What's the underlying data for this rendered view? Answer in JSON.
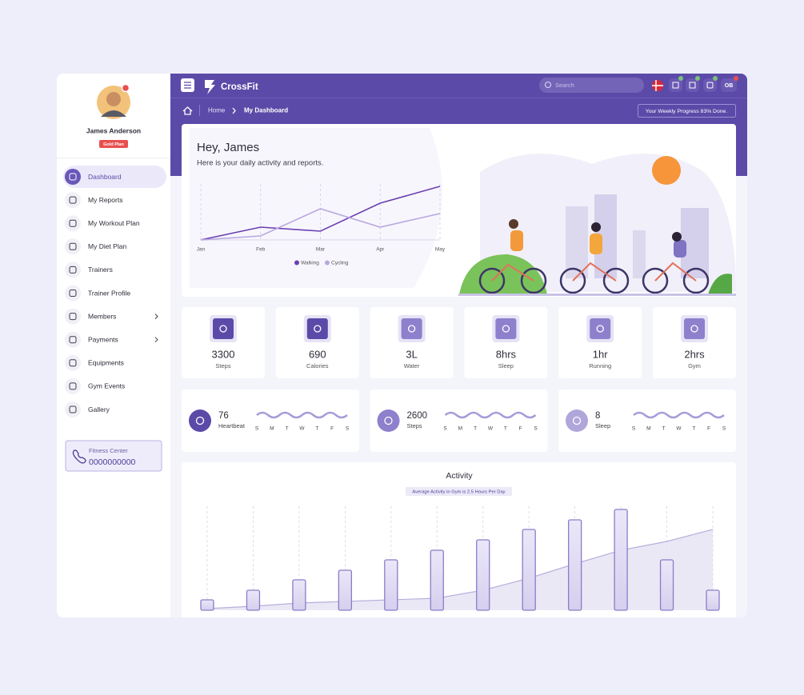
{
  "sidebar": {
    "user_name": "James Anderson",
    "plan": "Gold Plan",
    "menu": [
      "Dashboard",
      "My Reports",
      "My Workout Plan",
      "My Diet Plan",
      "Trainers",
      "Trainer Profile",
      "Members",
      "Payments",
      "Equipments",
      "Gym Events",
      "Gallery"
    ],
    "contact_label": "Fitness Center",
    "contact_phone": "0000000000"
  },
  "header": {
    "brand": "CrossFit",
    "search_placeholder": "Search",
    "user_initials": "OB"
  },
  "breadcrumb": {
    "items": [
      "Home",
      "My Dashboard"
    ],
    "progress": "Your Weekly Progress 83% Done."
  },
  "welcome": {
    "title": "Hey, James",
    "subtitle": "Here is your daily activity and reports."
  },
  "chart_data": [
    {
      "type": "line",
      "categories": [
        "Jan",
        "Feb",
        "Mar",
        "Apr",
        "May"
      ],
      "series": [
        {
          "name": "Walking",
          "color": "#6b3fb0",
          "values": [
            0,
            16,
            11,
            46,
            67
          ]
        },
        {
          "name": "Cycling",
          "color": "#b9a8e0",
          "values": [
            0,
            5,
            39,
            16,
            33
          ]
        }
      ],
      "ylim": [
        0,
        70
      ],
      "grid": true
    },
    {
      "type": "bar",
      "title": "Activity",
      "subtitle": "Average Activity in Gym is 2.5 Hours Per Day",
      "series": [
        {
          "type": "bar",
          "color": "#8a7cc8",
          "values": [
            13,
            25,
            38,
            50,
            63,
            75,
            88,
            101,
            113,
            126,
            63,
            25
          ]
        },
        {
          "type": "area",
          "color": "#b9afdc",
          "values": [
            2,
            5,
            9,
            11,
            13,
            15,
            25,
            40,
            58,
            75,
            86,
            101
          ]
        }
      ],
      "ylim": [
        0,
        130
      ],
      "grid": true
    }
  ],
  "stats": [
    {
      "value": 3300,
      "label": "Steps"
    },
    {
      "value": 690,
      "label": "Calories"
    },
    {
      "value": "3L",
      "label": "Water"
    },
    {
      "value": "8hrs",
      "label": "Sleep"
    },
    {
      "value": "1hr",
      "label": "Running"
    },
    {
      "value": "2hrs",
      "label": "Gym"
    }
  ],
  "mini_cards": [
    {
      "value": 76,
      "label": "Heartbeat"
    },
    {
      "value": 2600,
      "label": "Steps"
    },
    {
      "value": 8,
      "label": "Sleep"
    }
  ],
  "weekdays": [
    "S",
    "M",
    "T",
    "W",
    "T",
    "F",
    "S"
  ]
}
